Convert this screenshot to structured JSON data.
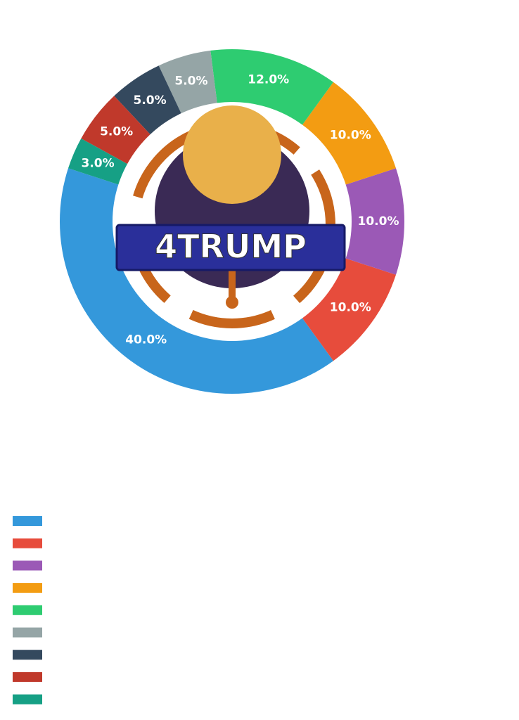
{
  "chart_data": {
    "type": "donut",
    "categories": [
      null,
      null,
      null,
      null,
      null,
      null,
      null,
      null,
      null
    ],
    "series": [
      {
        "name": null,
        "values": [
          40,
          10,
          10,
          10,
          12,
          5,
          5,
          5,
          3
        ],
        "value_labels": [
          "40.0%",
          "10.0%",
          "10.0%",
          "10.0%",
          "12.0%",
          "5.0%",
          "5.0%",
          "5.0%",
          "3.0%"
        ],
        "colors": [
          "#3498db",
          "#e74c3c",
          "#9b59b6",
          "#f39c12",
          "#2ecc71",
          "#95a5a6",
          "#34495e",
          "#c0392b",
          "#16a085"
        ]
      }
    ],
    "legend": "lower left"
  },
  "logo": {
    "text": "4TRUMP"
  }
}
